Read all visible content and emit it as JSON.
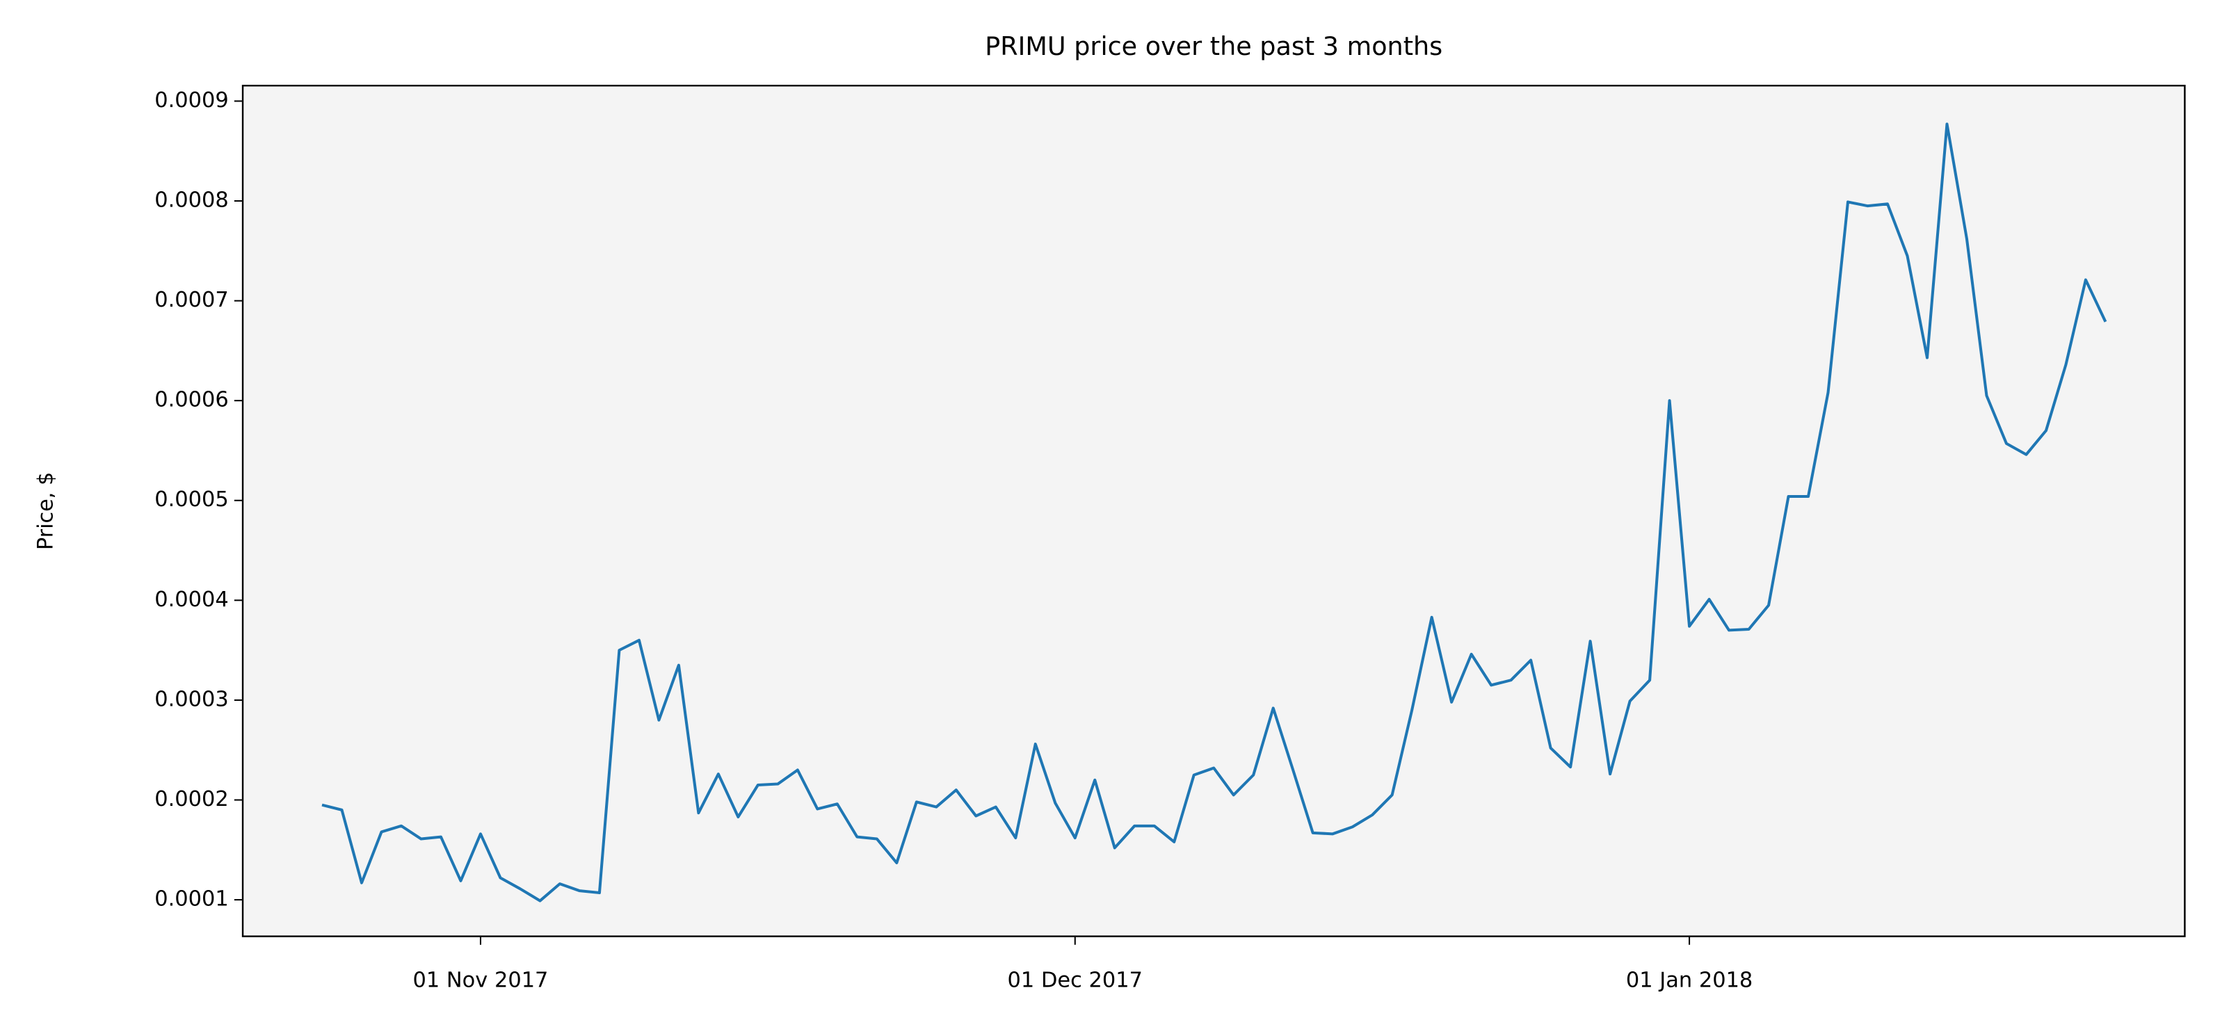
{
  "chart_data": {
    "type": "line",
    "title": "PRIMU price over the past 3 months",
    "ylabel": "Price, $",
    "x": [
      "2017-10-24",
      "2017-10-25",
      "2017-10-26",
      "2017-10-27",
      "2017-10-28",
      "2017-10-29",
      "2017-10-30",
      "2017-10-31",
      "2017-11-01",
      "2017-11-02",
      "2017-11-03",
      "2017-11-04",
      "2017-11-05",
      "2017-11-06",
      "2017-11-07",
      "2017-11-08",
      "2017-11-09",
      "2017-11-10",
      "2017-11-11",
      "2017-11-12",
      "2017-11-13",
      "2017-11-14",
      "2017-11-15",
      "2017-11-16",
      "2017-11-17",
      "2017-11-18",
      "2017-11-19",
      "2017-11-20",
      "2017-11-21",
      "2017-11-22",
      "2017-11-23",
      "2017-11-24",
      "2017-11-25",
      "2017-11-26",
      "2017-11-27",
      "2017-11-28",
      "2017-11-29",
      "2017-11-30",
      "2017-12-01",
      "2017-12-02",
      "2017-12-03",
      "2017-12-04",
      "2017-12-05",
      "2017-12-06",
      "2017-12-07",
      "2017-12-08",
      "2017-12-09",
      "2017-12-10",
      "2017-12-11",
      "2017-12-12",
      "2017-12-13",
      "2017-12-14",
      "2017-12-15",
      "2017-12-16",
      "2017-12-17",
      "2017-12-18",
      "2017-12-19",
      "2017-12-20",
      "2017-12-21",
      "2017-12-22",
      "2017-12-23",
      "2017-12-24",
      "2017-12-25",
      "2017-12-26",
      "2017-12-27",
      "2017-12-28",
      "2017-12-29",
      "2017-12-30",
      "2017-12-31",
      "2018-01-01",
      "2018-01-02",
      "2018-01-03",
      "2018-01-04",
      "2018-01-05",
      "2018-01-06",
      "2018-01-07",
      "2018-01-08",
      "2018-01-09",
      "2018-01-10",
      "2018-01-11",
      "2018-01-12",
      "2018-01-13",
      "2018-01-14",
      "2018-01-15",
      "2018-01-16",
      "2018-01-17",
      "2018-01-18",
      "2018-01-19",
      "2018-01-20",
      "2018-01-21",
      "2018-01-22"
    ],
    "series": [
      {
        "name": "PRIMU",
        "color": "#1f77b4",
        "values": [
          0.000195,
          0.00019,
          0.000117,
          0.000168,
          0.000174,
          0.000161,
          0.000163,
          0.000119,
          0.000166,
          0.000122,
          0.000111,
          9.9e-05,
          0.000116,
          0.000109,
          0.000107,
          0.00035,
          0.00036,
          0.00028,
          0.000335,
          0.000187,
          0.000226,
          0.000183,
          0.000215,
          0.000216,
          0.00023,
          0.000191,
          0.000196,
          0.000163,
          0.000161,
          0.000137,
          0.000198,
          0.000193,
          0.00021,
          0.000184,
          0.000193,
          0.000162,
          0.000256,
          0.000197,
          0.000162,
          0.00022,
          0.000152,
          0.000174,
          0.000174,
          0.000158,
          0.000225,
          0.000232,
          0.000205,
          0.000225,
          0.000292,
          0.00023,
          0.000167,
          0.000166,
          0.000173,
          0.000185,
          0.000205,
          0.00029,
          0.000383,
          0.000298,
          0.000346,
          0.000315,
          0.00032,
          0.00034,
          0.000252,
          0.000233,
          0.000359,
          0.000226,
          0.000299,
          0.00032,
          0.0006,
          0.000374,
          0.000401,
          0.00037,
          0.000371,
          0.000395,
          0.000504,
          0.000504,
          0.000608,
          0.000799,
          0.000795,
          0.000797,
          0.000745,
          0.000643,
          0.000877,
          0.000762,
          0.000605,
          0.000557,
          0.000546,
          0.00057,
          0.000636,
          0.000721,
          0.000679
        ]
      }
    ],
    "xlim": [
      "2017-10-20",
      "2018-01-26"
    ],
    "xticks": [
      {
        "value": "2017-11-01",
        "label": "01 Nov 2017"
      },
      {
        "value": "2017-12-01",
        "label": "01 Dec 2017"
      },
      {
        "value": "2018-01-01",
        "label": "01 Jan 2018"
      }
    ],
    "ylim": [
      6.34e-05,
      0.0009155
    ],
    "yticks": [
      0.0001,
      0.0002,
      0.0003,
      0.0004,
      0.0005,
      0.0006,
      0.0007,
      0.0008,
      0.0009
    ],
    "grid": false,
    "background": "#f4f4f4"
  }
}
